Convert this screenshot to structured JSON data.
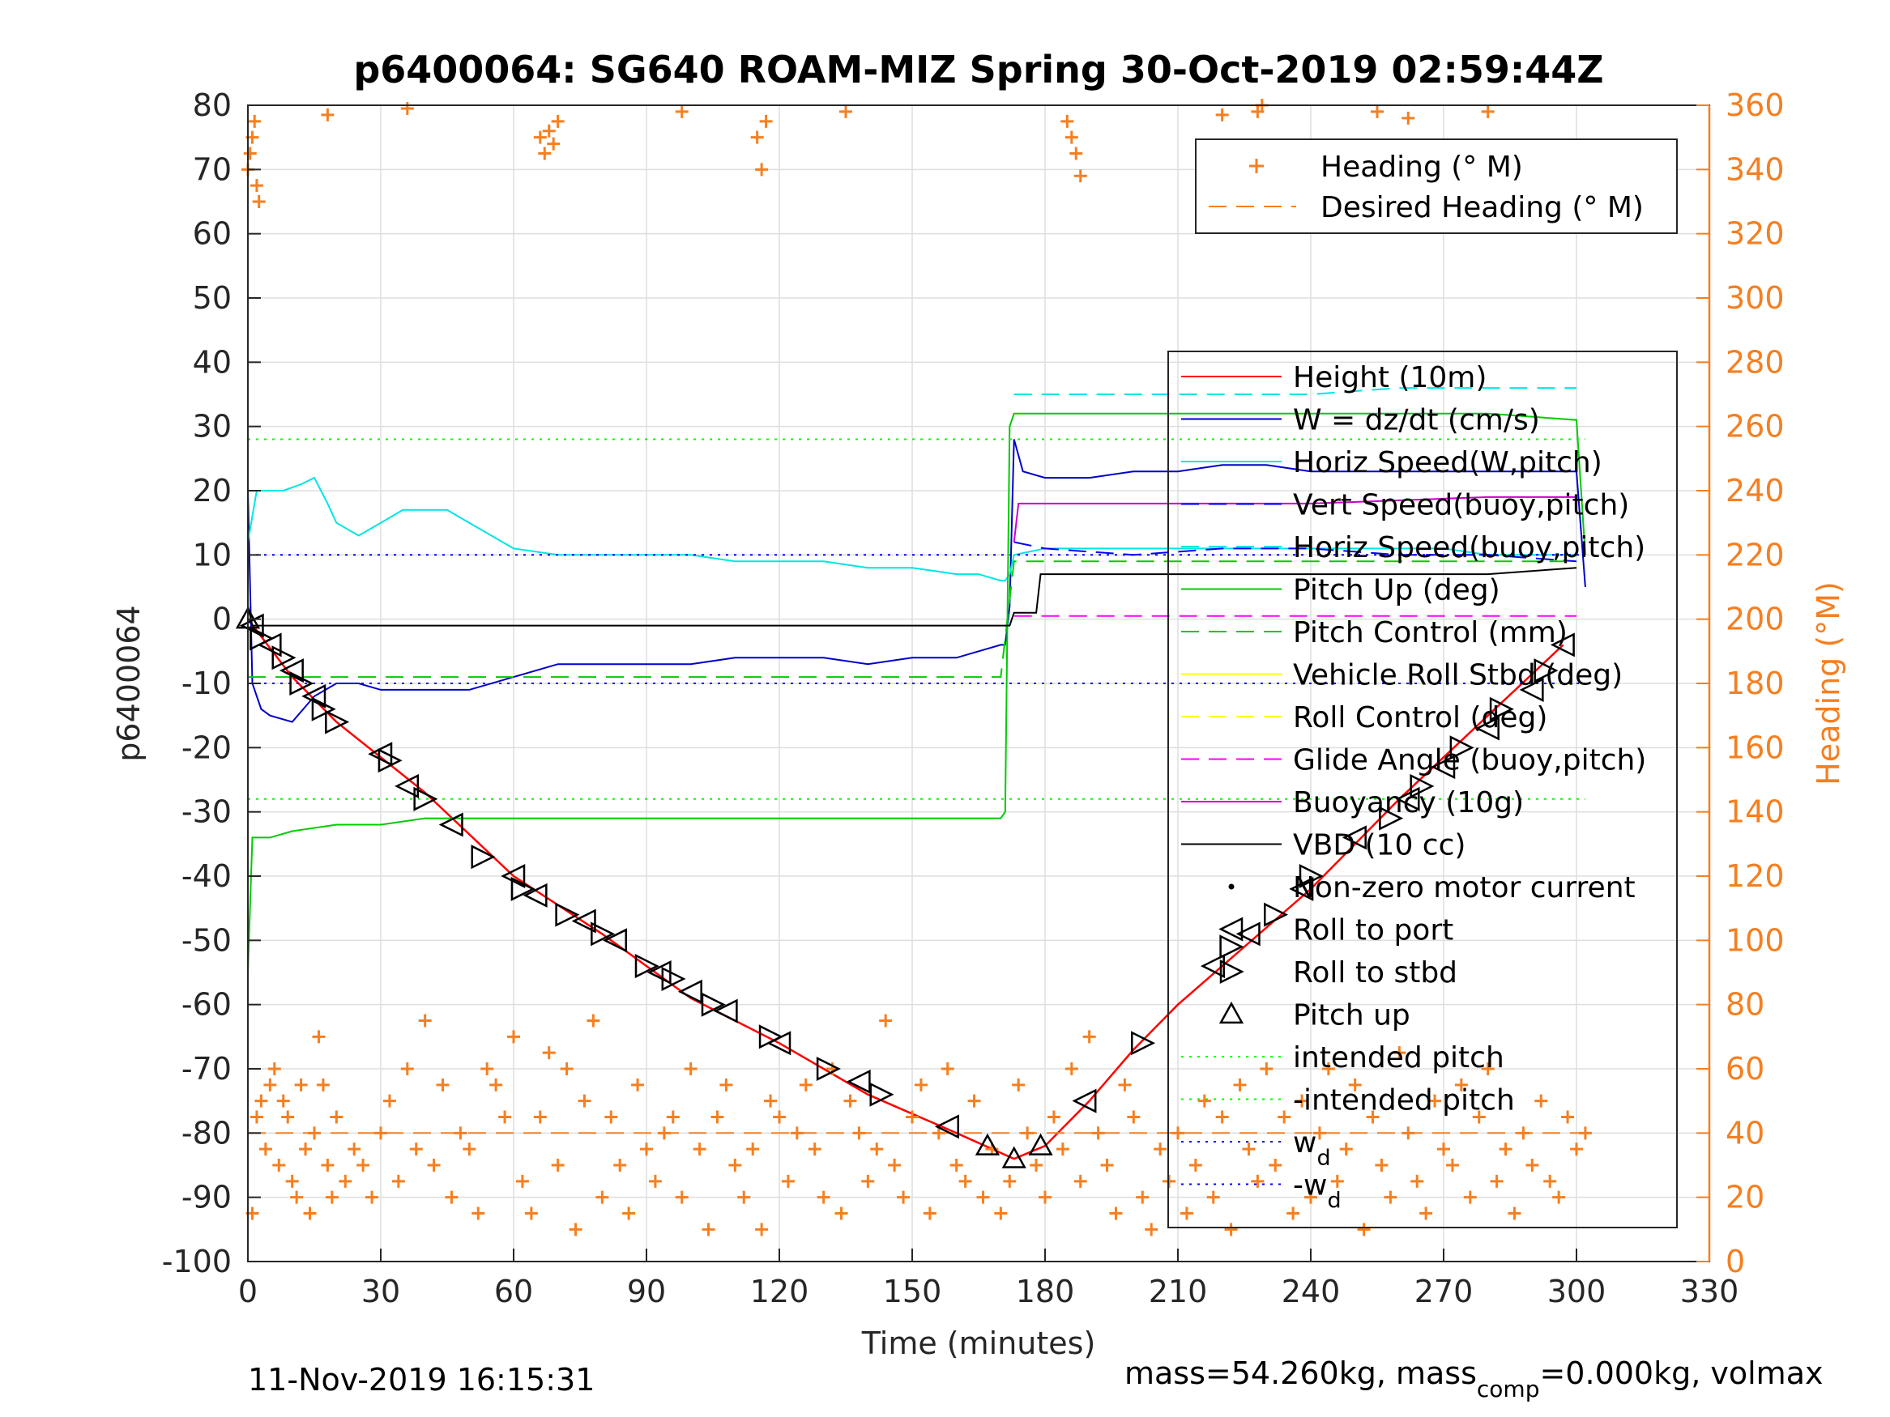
{
  "chart_data": {
    "type": "line",
    "title": "p6400064: SG640 ROAM-MIZ Spring 30-Oct-2019 02:59:44Z",
    "xlabel": "Time (minutes)",
    "ylabel_left": "p6400064",
    "ylabel_right": "Heading (°M)",
    "xlim": [
      0,
      330
    ],
    "ylim_left": [
      -100,
      80
    ],
    "ylim_right": [
      0,
      360
    ],
    "x_ticks": [
      0,
      30,
      60,
      90,
      120,
      150,
      180,
      210,
      240,
      270,
      300,
      330
    ],
    "y_ticks_left": [
      80,
      70,
      60,
      50,
      40,
      30,
      20,
      10,
      0,
      -10,
      -20,
      -30,
      -40,
      -50,
      -60,
      -70,
      -80,
      -90,
      -100
    ],
    "y_ticks_right": [
      360,
      340,
      320,
      300,
      280,
      260,
      240,
      220,
      200,
      180,
      160,
      140,
      120,
      100,
      80,
      60,
      40,
      20,
      0
    ],
    "grid": true,
    "footer_left": "11-Nov-2019 16:15:31",
    "footer_right": {
      "a": "mass=54.260kg, mass",
      "sub": "comp",
      "b": "=0.000kg, volmax"
    },
    "legend_heading": {
      "placement": "top-right",
      "entries": [
        {
          "label": "Heading (° M)",
          "marker": "plus",
          "color": "#f57f20"
        },
        {
          "label": "Desired Heading (° M)",
          "style": "dashed",
          "color": "#f57f20"
        }
      ]
    },
    "legend_main": {
      "placement": "right",
      "entries": [
        {
          "label": "Height (10m)",
          "style": "solid",
          "color": "#ff0000"
        },
        {
          "label": "W = dz/dt (cm/s)",
          "style": "solid",
          "color": "#0000cc"
        },
        {
          "label": "Horiz Speed(W,pitch)",
          "style": "solid",
          "color": "#00e5e5"
        },
        {
          "label": "Vert Speed(buoy,pitch)",
          "style": "dashed",
          "color": "#0000ff"
        },
        {
          "label": "Horiz Speed(buoy,pitch)",
          "style": "dashed",
          "color": "#00e5e5"
        },
        {
          "label": "Pitch Up (deg)",
          "style": "solid",
          "color": "#00cc00"
        },
        {
          "label": "Pitch Control (mm)",
          "style": "dashed",
          "color": "#00cc00"
        },
        {
          "label": "Vehicle Roll Stbd (deg)",
          "style": "solid",
          "color": "#ffff00"
        },
        {
          "label": "Roll Control (deg)",
          "style": "dashed",
          "color": "#ffff00"
        },
        {
          "label": "Glide Angle (buoy,pitch)",
          "style": "dashed",
          "color": "#ff00ff"
        },
        {
          "label": "Buoyancy (10g)",
          "style": "solid",
          "color": "#cc00cc"
        },
        {
          "label": "VBD (10 cc)",
          "style": "solid",
          "color": "#000000"
        },
        {
          "label": "Non-zero motor current",
          "marker": "dot",
          "color": "#000000"
        },
        {
          "label": "Roll to port",
          "marker": "triangle-left",
          "color": "#000000"
        },
        {
          "label": "Roll to stbd",
          "marker": "triangle-right",
          "color": "#000000"
        },
        {
          "label": "Pitch up",
          "marker": "triangle-up",
          "color": "#000000"
        },
        {
          "label": "intended pitch",
          "style": "dotted",
          "color": "#00ff00"
        },
        {
          "label": "-intended pitch",
          "style": "dotted",
          "color": "#00ff00"
        },
        {
          "label": "w",
          "sub": "d",
          "style": "dotted",
          "color": "#0000ff"
        },
        {
          "label": "-w",
          "sub": "d",
          "style": "dotted",
          "color": "#0000ff"
        }
      ]
    },
    "series": [
      {
        "name": "Height (10m)",
        "axis": "left",
        "color": "#ff0000",
        "x": [
          0,
          10,
          20,
          40,
          60,
          80,
          100,
          120,
          140,
          160,
          173,
          180,
          190,
          200,
          210,
          220,
          240,
          260,
          280,
          297
        ],
        "y": [
          0,
          -9,
          -16,
          -27,
          -40,
          -49,
          -59,
          -66,
          -74,
          -80,
          -84,
          -82,
          -75,
          -67,
          -60,
          -54,
          -42,
          -28,
          -15,
          -4
        ]
      },
      {
        "name": "W = dz/dt (cm/s)",
        "axis": "left",
        "color": "#0000cc",
        "x": [
          0,
          1,
          3,
          5,
          10,
          15,
          20,
          25,
          30,
          40,
          50,
          60,
          70,
          80,
          90,
          100,
          110,
          120,
          130,
          140,
          150,
          160,
          170,
          171,
          172,
          173,
          175,
          180,
          190,
          200,
          210,
          220,
          230,
          240,
          260,
          280,
          300,
          302
        ],
        "y": [
          20,
          -10,
          -14,
          -15,
          -16,
          -12,
          -10,
          -10,
          -11,
          -11,
          -11,
          -9,
          -7,
          -7,
          -7,
          -7,
          -6,
          -6,
          -6,
          -7,
          -6,
          -6,
          -4,
          -4,
          2,
          28,
          23,
          22,
          22,
          23,
          23,
          24,
          24,
          23,
          23,
          23,
          23,
          5
        ]
      },
      {
        "name": "Horiz Speed(W,pitch)",
        "axis": "left",
        "color": "#00e5e5",
        "x": [
          0,
          2,
          5,
          8,
          12,
          15,
          18,
          20,
          25,
          30,
          35,
          40,
          45,
          50,
          55,
          60,
          70,
          80,
          90,
          100,
          110,
          120,
          130,
          140,
          150,
          160,
          165,
          170,
          171,
          172,
          173,
          180,
          190,
          200,
          210,
          220,
          230,
          240,
          250,
          260,
          270,
          280,
          290,
          300
        ],
        "y": [
          12,
          20,
          20,
          20,
          21,
          22,
          18,
          15,
          13,
          15,
          17,
          17,
          17,
          15,
          13,
          11,
          10,
          10,
          10,
          10,
          9,
          9,
          9,
          8,
          8,
          7,
          7,
          6,
          6,
          7,
          10,
          11,
          11,
          11,
          11,
          11,
          11,
          11,
          11,
          11,
          11,
          10,
          10,
          10
        ]
      },
      {
        "name": "Vert Speed(buoy,pitch)",
        "axis": "left",
        "color": "#0000ff",
        "x": [
          173,
          180,
          200,
          220,
          240,
          260,
          280,
          300
        ],
        "y": [
          12,
          11,
          10,
          11,
          11,
          10,
          10,
          9
        ]
      },
      {
        "name": "Horiz Speed(buoy,pitch)",
        "axis": "left",
        "color": "#00e5e5",
        "x": [
          173,
          180,
          200,
          220,
          240,
          260,
          280,
          300
        ],
        "y": [
          35,
          35,
          35,
          35,
          35,
          36,
          36,
          36
        ]
      },
      {
        "name": "Pitch Up (deg)",
        "axis": "left",
        "color": "#00cc00",
        "x": [
          0,
          1,
          2,
          3,
          5,
          10,
          20,
          30,
          40,
          50,
          60,
          70,
          80,
          90,
          100,
          110,
          120,
          130,
          140,
          150,
          160,
          170,
          171,
          172,
          173,
          175,
          180,
          200,
          220,
          240,
          260,
          280,
          300,
          302
        ],
        "y": [
          -55,
          -34,
          -34,
          -34,
          -34,
          -33,
          -32,
          -32,
          -31,
          -31,
          -31,
          -31,
          -31,
          -31,
          -31,
          -31,
          -31,
          -31,
          -31,
          -31,
          -31,
          -31,
          -30,
          30,
          32,
          32,
          32,
          32,
          32,
          32,
          32,
          32,
          31,
          10
        ]
      },
      {
        "name": "Pitch Control (mm)",
        "axis": "left",
        "color": "#00cc00",
        "x": [
          0,
          30,
          60,
          90,
          120,
          150,
          170,
          173,
          200,
          240,
          280,
          300
        ],
        "y": [
          -9,
          -9,
          -9,
          -9,
          -9,
          -9,
          -9,
          9,
          9,
          9,
          9,
          9
        ]
      },
      {
        "name": "Glide Angle (buoy,pitch)",
        "axis": "left",
        "color": "#ff00ff",
        "x": [
          173,
          200,
          250,
          300
        ],
        "y": [
          0.5,
          0.5,
          0.5,
          0.5
        ]
      },
      {
        "name": "Buoyancy (10g)",
        "axis": "left",
        "color": "#cc00cc",
        "x": [
          173,
          174,
          200,
          240,
          280,
          300
        ],
        "y": [
          12,
          18,
          18,
          18,
          19,
          19
        ]
      },
      {
        "name": "VBD (10 cc)",
        "axis": "left",
        "color": "#000000",
        "x": [
          0,
          1,
          2,
          50,
          100,
          150,
          172,
          173,
          178,
          179,
          200,
          240,
          280,
          300
        ],
        "y": [
          2,
          -1,
          -1,
          -1,
          -1,
          -1,
          -1,
          1,
          1,
          7,
          7,
          7,
          7,
          8
        ]
      },
      {
        "name": "intended pitch",
        "axis": "left",
        "color": "#00ff00",
        "x": [
          0,
          302
        ],
        "y": [
          28,
          28
        ]
      },
      {
        "name": "-intended pitch",
        "axis": "left",
        "color": "#00ff00",
        "x": [
          0,
          302
        ],
        "y": [
          -28,
          -28
        ]
      },
      {
        "name": "w_d",
        "axis": "left",
        "color": "#0000ff",
        "x": [
          0,
          302
        ],
        "y": [
          10,
          10
        ]
      },
      {
        "name": "-w_d",
        "axis": "left",
        "color": "#0000ff",
        "x": [
          0,
          302
        ],
        "y": [
          -10,
          -10
        ]
      },
      {
        "name": "Desired Heading (° M)",
        "axis": "right",
        "color": "#f57f20",
        "x": [
          0,
          302
        ],
        "y": [
          40,
          40
        ]
      }
    ],
    "roll_markers": {
      "x": [
        0,
        1,
        3,
        5,
        8,
        10,
        12,
        15,
        17,
        20,
        30,
        32,
        36,
        40,
        46,
        53,
        60,
        62,
        65,
        72,
        76,
        80,
        83,
        90,
        93,
        96,
        100,
        105,
        108,
        118,
        120,
        131,
        138,
        143,
        158,
        167,
        173,
        179,
        189,
        202,
        218,
        222,
        226,
        232,
        238,
        240,
        250,
        258,
        262,
        265,
        270,
        274,
        280,
        283,
        290,
        293,
        297
      ],
      "y": [
        0,
        -1,
        -3,
        -4,
        -6,
        -8,
        -10,
        -12,
        -14,
        -16,
        -21,
        -22,
        -26,
        -28,
        -32,
        -37,
        -40,
        -42,
        -43,
        -46,
        -47,
        -49,
        -50,
        -54,
        -55,
        -56,
        -58,
        -60,
        -61,
        -65,
        -66,
        -70,
        -72,
        -74,
        -79,
        -82,
        -84,
        -82,
        -75,
        -66,
        -54,
        -51,
        -49,
        -46,
        -42,
        -40,
        -34,
        -31,
        -28,
        -26,
        -23,
        -20,
        -17,
        -14,
        -11,
        -8,
        -4
      ],
      "types": [
        "up",
        "left",
        "right",
        "left",
        "right",
        "left",
        "right",
        "left",
        "right",
        "right",
        "left",
        "right",
        "left",
        "right",
        "left",
        "right",
        "left",
        "right",
        "left",
        "right",
        "left",
        "right",
        "left",
        "right",
        "left",
        "right",
        "left",
        "right",
        "left",
        "right",
        "left",
        "right",
        "left",
        "right",
        "left",
        "up",
        "up",
        "up",
        "left",
        "right",
        "left",
        "right",
        "left",
        "right",
        "left",
        "right",
        "left",
        "right",
        "left",
        "right",
        "left",
        "right",
        "left",
        "right",
        "left",
        "right",
        "left"
      ]
    },
    "heading_points_deg": {
      "x": [
        0,
        0.5,
        1,
        1.5,
        2,
        2.5,
        18,
        36,
        66,
        67,
        68,
        69,
        70,
        98,
        115,
        116,
        117,
        135,
        185,
        186,
        187,
        188,
        220,
        228,
        229,
        255,
        262,
        280,
        1,
        2,
        3,
        4,
        5,
        6,
        7,
        8,
        9,
        10,
        11,
        12,
        13,
        14,
        15,
        16,
        17,
        18,
        19,
        20,
        22,
        24,
        26,
        28,
        30,
        32,
        34,
        36,
        38,
        40,
        42,
        44,
        46,
        48,
        50,
        52,
        54,
        56,
        58,
        60,
        62,
        64,
        66,
        68,
        70,
        72,
        74,
        76,
        78,
        80,
        82,
        84,
        86,
        88,
        90,
        92,
        94,
        96,
        98,
        100,
        102,
        104,
        106,
        108,
        110,
        112,
        114,
        116,
        118,
        120,
        122,
        124,
        126,
        128,
        130,
        132,
        134,
        136,
        138,
        140,
        142,
        144,
        146,
        148,
        150,
        152,
        154,
        156,
        158,
        160,
        162,
        164,
        166,
        168,
        170,
        172,
        174,
        176,
        178,
        180,
        182,
        184,
        186,
        188,
        190,
        192,
        194,
        196,
        198,
        200,
        202,
        204,
        206,
        208,
        210,
        212,
        214,
        216,
        218,
        220,
        222,
        224,
        226,
        228,
        230,
        232,
        234,
        236,
        238,
        240,
        242,
        244,
        246,
        248,
        250,
        252,
        254,
        256,
        258,
        260,
        262,
        264,
        266,
        268,
        270,
        272,
        274,
        276,
        278,
        280,
        282,
        284,
        286,
        288,
        290,
        292,
        294,
        296,
        298,
        300,
        302
      ],
      "y": [
        340,
        345,
        350,
        355,
        335,
        330,
        357,
        359,
        350,
        345,
        352,
        348,
        355,
        358,
        350,
        340,
        355,
        358,
        355,
        350,
        345,
        338,
        357,
        358,
        360,
        358,
        356,
        358,
        15,
        45,
        50,
        35,
        55,
        60,
        30,
        50,
        45,
        25,
        20,
        55,
        35,
        15,
        40,
        70,
        55,
        30,
        20,
        45,
        25,
        35,
        30,
        20,
        40,
        50,
        25,
        60,
        35,
        75,
        30,
        55,
        20,
        40,
        35,
        15,
        60,
        55,
        45,
        70,
        25,
        15,
        45,
        65,
        30,
        60,
        10,
        50,
        75,
        20,
        45,
        30,
        15,
        55,
        35,
        25,
        40,
        45,
        20,
        60,
        35,
        10,
        45,
        55,
        30,
        20,
        35,
        10,
        50,
        45,
        25,
        40,
        55,
        35,
        20,
        60,
        15,
        50,
        40,
        25,
        35,
        75,
        30,
        20,
        45,
        55,
        15,
        40,
        60,
        30,
        25,
        50,
        20,
        35,
        15,
        25,
        55,
        40,
        30,
        20,
        45,
        35,
        60,
        25,
        70,
        40,
        30,
        15,
        55,
        45,
        20,
        10,
        35,
        25,
        40,
        15,
        30,
        50,
        20,
        45,
        10,
        55,
        35,
        25,
        60,
        30,
        45,
        15,
        50,
        20,
        40,
        60,
        25,
        35,
        55,
        10,
        45,
        30,
        20,
        65,
        40,
        25,
        15,
        50,
        35,
        30,
        55,
        20,
        45,
        60,
        25,
        35,
        15,
        40,
        30,
        50,
        25,
        20,
        45,
        35,
        40
      ]
    }
  }
}
